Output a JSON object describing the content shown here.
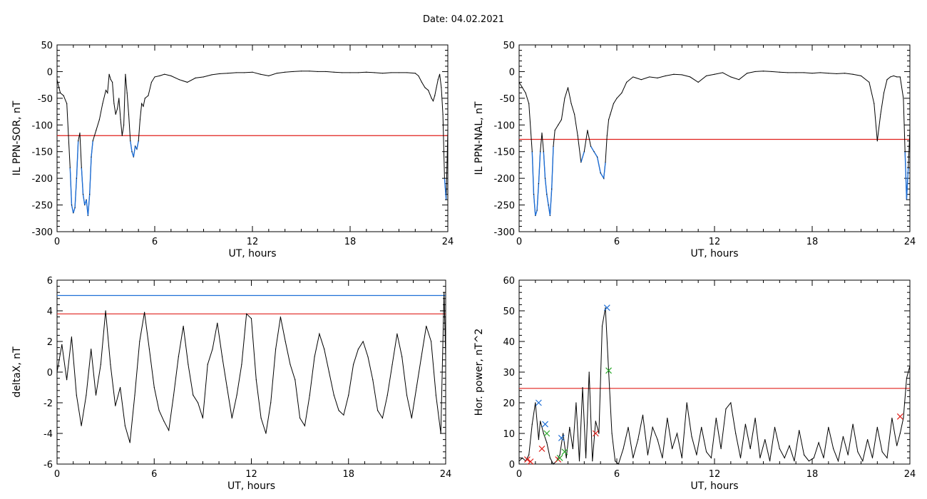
{
  "page": {
    "title": "Date:  04.02.2021"
  },
  "colors": {
    "line": "#000000",
    "threshold_red": "#e0201b",
    "threshold_blue": "#1f6fd6",
    "event_blue": "#1f6fd6",
    "marker_green": "#2aa82a",
    "marker_red": "#e0201b"
  },
  "chart_data": [
    {
      "id": "ppn-sor",
      "type": "line",
      "xlabel": "UT, hours",
      "ylabel": "IL PPN-SOR, nT",
      "xlim": [
        0,
        24
      ],
      "ylim": [
        -300,
        50
      ],
      "xticks": [
        0,
        6,
        12,
        18,
        24
      ],
      "yticks": [
        -300,
        -250,
        -200,
        -150,
        -100,
        -50,
        0,
        50
      ],
      "thresholds": [
        {
          "value": -120,
          "color": "red"
        }
      ],
      "x": [
        0,
        0.2,
        0.4,
        0.6,
        0.8,
        0.9,
        1.0,
        1.1,
        1.2,
        1.3,
        1.4,
        1.5,
        1.6,
        1.7,
        1.8,
        1.9,
        2.0,
        2.1,
        2.2,
        2.4,
        2.6,
        2.8,
        3.0,
        3.1,
        3.2,
        3.3,
        3.4,
        3.5,
        3.6,
        3.7,
        3.8,
        3.9,
        4.0,
        4.1,
        4.2,
        4.3,
        4.4,
        4.5,
        4.6,
        4.7,
        4.8,
        4.9,
        5.0,
        5.1,
        5.2,
        5.3,
        5.4,
        5.6,
        5.8,
        6.0,
        6.3,
        6.6,
        7.0,
        7.5,
        8.0,
        8.5,
        9.0,
        9.5,
        10.0,
        10.5,
        11.0,
        11.5,
        12.0,
        12.5,
        13.0,
        13.5,
        14.0,
        14.5,
        15.0,
        15.5,
        16.0,
        16.5,
        17.0,
        17.5,
        18.0,
        18.5,
        19.0,
        19.5,
        20.0,
        20.5,
        21.0,
        21.5,
        22.0,
        22.2,
        22.4,
        22.6,
        22.8,
        23.0,
        23.1,
        23.2,
        23.3,
        23.4,
        23.5,
        23.6,
        23.7,
        23.8,
        23.9,
        24.0
      ],
      "y": [
        -15,
        -40,
        -45,
        -60,
        -180,
        -250,
        -265,
        -255,
        -200,
        -130,
        -115,
        -180,
        -230,
        -250,
        -240,
        -270,
        -230,
        -160,
        -130,
        -110,
        -90,
        -60,
        -35,
        -40,
        -5,
        -15,
        -20,
        -60,
        -80,
        -70,
        -50,
        -90,
        -120,
        -100,
        -5,
        -40,
        -80,
        -130,
        -150,
        -160,
        -140,
        -145,
        -130,
        -90,
        -60,
        -65,
        -50,
        -45,
        -20,
        -10,
        -8,
        -5,
        -8,
        -15,
        -20,
        -12,
        -10,
        -6,
        -4,
        -3,
        -2,
        -2,
        -1,
        -5,
        -8,
        -3,
        -1,
        0,
        1,
        1,
        0,
        0,
        -1,
        -2,
        -2,
        -2,
        -1,
        -2,
        -3,
        -2,
        -2,
        -2,
        -3,
        -8,
        -20,
        -30,
        -35,
        -50,
        -55,
        -45,
        -30,
        -15,
        -5,
        -30,
        -80,
        -200,
        -240,
        -110
      ]
    },
    {
      "id": "ppn-nal",
      "type": "line",
      "xlabel": "UT, hours",
      "ylabel": "IL PPN-NAL, nT",
      "xlim": [
        0,
        24
      ],
      "ylim": [
        -300,
        50
      ],
      "xticks": [
        0,
        6,
        12,
        18,
        24
      ],
      "yticks": [
        -300,
        -250,
        -200,
        -150,
        -100,
        -50,
        0,
        50
      ],
      "thresholds": [
        {
          "value": -127,
          "color": "red"
        }
      ],
      "x": [
        0,
        0.2,
        0.4,
        0.6,
        0.8,
        0.9,
        1.0,
        1.1,
        1.2,
        1.3,
        1.4,
        1.5,
        1.6,
        1.7,
        1.8,
        1.9,
        2.0,
        2.1,
        2.2,
        2.4,
        2.6,
        2.8,
        3.0,
        3.2,
        3.4,
        3.6,
        3.8,
        4.0,
        4.2,
        4.4,
        4.6,
        4.8,
        5.0,
        5.2,
        5.3,
        5.4,
        5.5,
        5.6,
        5.8,
        6.0,
        6.3,
        6.6,
        7.0,
        7.5,
        8.0,
        8.5,
        9.0,
        9.5,
        10.0,
        10.5,
        11.0,
        11.5,
        12.0,
        12.5,
        13.0,
        13.5,
        14.0,
        14.5,
        15.0,
        15.5,
        16.0,
        16.5,
        17.0,
        17.5,
        18.0,
        18.5,
        19.0,
        19.5,
        20.0,
        20.5,
        21.0,
        21.5,
        21.8,
        22.0,
        22.2,
        22.4,
        22.6,
        22.8,
        23.0,
        23.2,
        23.4,
        23.6,
        23.7,
        23.8,
        23.9,
        24.0
      ],
      "y": [
        -20,
        -30,
        -40,
        -60,
        -150,
        -230,
        -270,
        -260,
        -210,
        -150,
        -115,
        -150,
        -200,
        -230,
        -250,
        -270,
        -220,
        -140,
        -110,
        -100,
        -90,
        -50,
        -30,
        -60,
        -80,
        -120,
        -170,
        -150,
        -110,
        -140,
        -150,
        -160,
        -190,
        -200,
        -170,
        -120,
        -90,
        -80,
        -60,
        -50,
        -40,
        -20,
        -10,
        -15,
        -10,
        -12,
        -8,
        -5,
        -6,
        -10,
        -20,
        -8,
        -5,
        -2,
        -10,
        -15,
        -3,
        0,
        1,
        0,
        -1,
        -2,
        -2,
        -2,
        -3,
        -2,
        -3,
        -4,
        -3,
        -5,
        -8,
        -20,
        -60,
        -130,
        -80,
        -40,
        -15,
        -10,
        -8,
        -10,
        -10,
        -50,
        -150,
        -240,
        -180,
        -110
      ]
    },
    {
      "id": "deltax",
      "type": "line",
      "xlabel": "UT, hours",
      "ylabel": "deltaX, nT",
      "xlim": [
        0,
        24
      ],
      "ylim": [
        -6,
        6
      ],
      "xticks": [
        0,
        6,
        12,
        18,
        24
      ],
      "yticks": [
        -6,
        -4,
        -2,
        0,
        2,
        4,
        6
      ],
      "thresholds": [
        {
          "value": 5.0,
          "color": "blue"
        },
        {
          "value": 3.8,
          "color": "red"
        }
      ],
      "x": [
        0,
        0.3,
        0.6,
        0.9,
        1.2,
        1.5,
        1.8,
        2.1,
        2.4,
        2.7,
        3.0,
        3.3,
        3.6,
        3.9,
        4.2,
        4.5,
        4.8,
        5.1,
        5.4,
        5.7,
        6.0,
        6.3,
        6.6,
        6.9,
        7.2,
        7.5,
        7.8,
        8.1,
        8.4,
        8.7,
        9.0,
        9.3,
        9.6,
        9.9,
        10.2,
        10.5,
        10.8,
        11.1,
        11.4,
        11.7,
        12.0,
        12.3,
        12.6,
        12.9,
        13.2,
        13.5,
        13.8,
        14.1,
        14.4,
        14.7,
        15.0,
        15.3,
        15.6,
        15.9,
        16.2,
        16.5,
        16.8,
        17.1,
        17.4,
        17.7,
        18.0,
        18.3,
        18.6,
        18.9,
        19.2,
        19.5,
        19.8,
        20.1,
        20.4,
        20.7,
        21.0,
        21.3,
        21.6,
        21.9,
        22.2,
        22.5,
        22.8,
        23.1,
        23.4,
        23.7,
        23.9,
        24.0
      ],
      "y": [
        0,
        1.8,
        -0.5,
        2.3,
        -1.5,
        -3.5,
        -1.5,
        1.5,
        -1.5,
        0.5,
        4.0,
        0.5,
        -2.2,
        -1.0,
        -3.5,
        -4.6,
        -1.5,
        2.0,
        3.9,
        1.5,
        -1.0,
        -2.5,
        -3.2,
        -3.8,
        -1.5,
        1.0,
        3.0,
        0.5,
        -1.5,
        -2.0,
        -3.0,
        0.5,
        1.5,
        3.2,
        1.0,
        -1.0,
        -3.0,
        -1.5,
        0.5,
        3.8,
        3.5,
        -0.5,
        -3.0,
        -4.0,
        -2.0,
        1.5,
        3.6,
        2.0,
        0.5,
        -0.5,
        -3.0,
        -3.5,
        -1.5,
        1.0,
        2.5,
        1.5,
        0,
        -1.5,
        -2.5,
        -2.8,
        -1.5,
        0.5,
        1.5,
        2.0,
        1.0,
        -0.5,
        -2.5,
        -3.0,
        -1.5,
        0.5,
        2.5,
        1.0,
        -1.5,
        -3.0,
        -1.0,
        1.0,
        3.0,
        2.0,
        -1.5,
        -4.0,
        5.2,
        1.0
      ]
    },
    {
      "id": "hor-power",
      "type": "line",
      "xlabel": "UT, hours",
      "ylabel": "Hor. power, nT^2",
      "xlim": [
        0,
        24
      ],
      "ylim": [
        0,
        60
      ],
      "xticks": [
        0,
        6,
        12,
        18,
        24
      ],
      "yticks": [
        0,
        10,
        20,
        30,
        40,
        50,
        60
      ],
      "thresholds": [
        {
          "value": 24.7,
          "color": "red"
        }
      ],
      "x": [
        0,
        0.2,
        0.4,
        0.6,
        0.8,
        1.0,
        1.2,
        1.3,
        1.5,
        1.7,
        1.9,
        2.1,
        2.3,
        2.5,
        2.7,
        2.9,
        3.1,
        3.3,
        3.5,
        3.7,
        3.9,
        4.1,
        4.3,
        4.5,
        4.7,
        4.9,
        5.1,
        5.3,
        5.5,
        5.7,
        5.9,
        6.1,
        6.4,
        6.7,
        7.0,
        7.3,
        7.6,
        7.9,
        8.2,
        8.5,
        8.8,
        9.1,
        9.4,
        9.7,
        10.0,
        10.3,
        10.6,
        10.9,
        11.2,
        11.5,
        11.8,
        12.1,
        12.4,
        12.7,
        13.0,
        13.3,
        13.6,
        13.9,
        14.2,
        14.5,
        14.8,
        15.1,
        15.4,
        15.7,
        16.0,
        16.3,
        16.6,
        16.9,
        17.2,
        17.5,
        17.8,
        18.1,
        18.4,
        18.7,
        19.0,
        19.3,
        19.6,
        19.9,
        20.2,
        20.5,
        20.8,
        21.1,
        21.4,
        21.7,
        22.0,
        22.3,
        22.6,
        22.9,
        23.2,
        23.4,
        23.6,
        23.8,
        24.0
      ],
      "y": [
        1,
        2,
        1,
        3,
        13,
        20,
        8,
        14,
        10,
        7,
        2,
        0,
        1,
        3,
        10,
        2,
        12,
        5,
        20,
        1,
        25,
        2,
        30,
        1,
        14,
        10,
        45,
        51,
        30,
        10,
        1,
        0,
        5,
        12,
        2,
        8,
        16,
        3,
        12,
        8,
        2,
        15,
        5,
        10,
        2,
        20,
        9,
        3,
        12,
        4,
        2,
        15,
        5,
        18,
        20,
        10,
        2,
        13,
        5,
        15,
        2,
        8,
        1,
        12,
        5,
        2,
        6,
        1,
        11,
        3,
        1,
        2,
        7,
        2,
        12,
        5,
        1,
        9,
        3,
        13,
        4,
        1,
        8,
        2,
        12,
        4,
        2,
        15,
        6,
        10,
        15,
        28,
        32
      ]
    }
  ],
  "markers": [
    {
      "panel": "hor-power",
      "x": 0.5,
      "y": 1.5,
      "color": "red"
    },
    {
      "panel": "hor-power",
      "x": 0.7,
      "y": 0.8,
      "color": "red"
    },
    {
      "panel": "hor-power",
      "x": 1.2,
      "y": 20,
      "color": "blue"
    },
    {
      "panel": "hor-power",
      "x": 1.4,
      "y": 5,
      "color": "red"
    },
    {
      "panel": "hor-power",
      "x": 1.6,
      "y": 13,
      "color": "blue"
    },
    {
      "panel": "hor-power",
      "x": 1.7,
      "y": 10,
      "color": "green"
    },
    {
      "panel": "hor-power",
      "x": 2.4,
      "y": 1.5,
      "color": "red"
    },
    {
      "panel": "hor-power",
      "x": 2.5,
      "y": 2,
      "color": "green"
    },
    {
      "panel": "hor-power",
      "x": 2.6,
      "y": 8.5,
      "color": "blue"
    },
    {
      "panel": "hor-power",
      "x": 2.8,
      "y": 4,
      "color": "green"
    },
    {
      "panel": "hor-power",
      "x": 4.7,
      "y": 10,
      "color": "red"
    },
    {
      "panel": "hor-power",
      "x": 5.4,
      "y": 51,
      "color": "blue"
    },
    {
      "panel": "hor-power",
      "x": 5.5,
      "y": 30.5,
      "color": "green"
    },
    {
      "panel": "hor-power",
      "x": 23.4,
      "y": 15.5,
      "color": "red"
    }
  ]
}
